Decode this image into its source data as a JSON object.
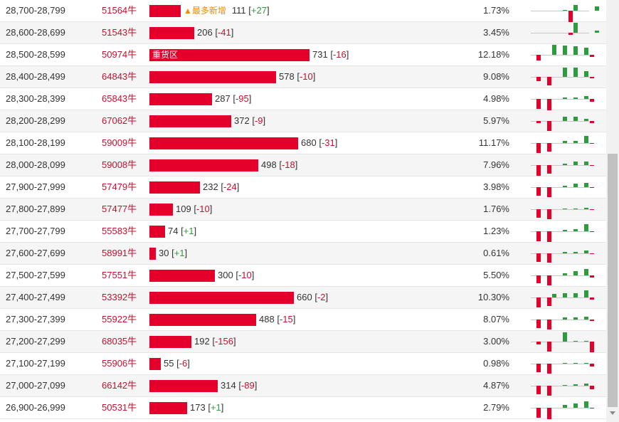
{
  "badge_label": "▲最多新增",
  "heavy_label": "重货区",
  "rows": [
    {
      "range": "28,700-28,799",
      "price": "51564牛",
      "bar": 44,
      "count": "111",
      "change": "+27",
      "pct": "1.73%",
      "badge": true,
      "spark": [
        0,
        0,
        0,
        0,
        1,
        0,
        8,
        16,
        0,
        0,
        6,
        0
      ]
    },
    {
      "range": "28,600-28,699",
      "price": "51543牛",
      "bar": 63,
      "count": "206",
      "change": "-41",
      "pct": "3.45%",
      "spark": [
        0,
        0,
        0,
        0,
        0,
        0,
        14,
        3,
        0,
        0,
        3,
        0
      ]
    },
    {
      "range": "28,500-28,599",
      "price": "50974牛",
      "bar": 225,
      "count": "731",
      "change": "-16",
      "pct": "12.18%",
      "heavy": true,
      "spark": [
        0,
        8,
        14,
        0,
        13,
        0,
        12,
        0,
        10,
        0,
        0,
        3
      ]
    },
    {
      "range": "28,400-28,499",
      "price": "64843牛",
      "bar": 178,
      "count": "578",
      "change": "-10",
      "pct": "9.08%",
      "spark": [
        0,
        6,
        0,
        12,
        13,
        0,
        13,
        0,
        8,
        0,
        0,
        2
      ]
    },
    {
      "range": "28,300-28,399",
      "price": "65843牛",
      "bar": 88,
      "count": "287",
      "change": "-95",
      "pct": "4.98%",
      "spark": [
        0,
        14,
        0,
        16,
        2,
        0,
        2,
        0,
        4,
        0,
        0,
        4
      ]
    },
    {
      "range": "28,200-28,299",
      "price": "67062牛",
      "bar": 115,
      "count": "372",
      "change": "-9",
      "pct": "5.97%",
      "spark": [
        0,
        3,
        0,
        14,
        6,
        0,
        6,
        0,
        3,
        0,
        0,
        3
      ]
    },
    {
      "range": "28,100-28,199",
      "price": "59009牛",
      "bar": 209,
      "count": "680",
      "change": "-31",
      "pct": "11.17%",
      "spark": [
        0,
        14,
        0,
        12,
        3,
        0,
        3,
        0,
        10,
        0,
        0,
        1
      ]
    },
    {
      "range": "28,000-28,099",
      "price": "59008牛",
      "bar": 153,
      "count": "498",
      "change": "-18",
      "pct": "7.96%",
      "spark": [
        0,
        15,
        0,
        12,
        2,
        0,
        5,
        0,
        5,
        0,
        0,
        1
      ]
    },
    {
      "range": "27,900-27,999",
      "price": "57479牛",
      "bar": 71,
      "count": "232",
      "change": "-24",
      "pct": "3.98%",
      "spark": [
        0,
        12,
        0,
        14,
        2,
        0,
        5,
        0,
        6,
        0,
        0,
        1
      ]
    },
    {
      "range": "27,800-27,899",
      "price": "57477牛",
      "bar": 33,
      "count": "109",
      "change": "-10",
      "pct": "1.76%",
      "spark": [
        0,
        12,
        0,
        14,
        1,
        0,
        1,
        0,
        2,
        0,
        0,
        1
      ]
    },
    {
      "range": "27,700-27,799",
      "price": "55583牛",
      "bar": 22,
      "count": "74",
      "change": "+1",
      "pct": "1.23%",
      "spark": [
        0,
        14,
        0,
        15,
        2,
        0,
        3,
        0,
        10,
        0,
        0,
        1
      ]
    },
    {
      "range": "27,600-27,699",
      "price": "58991牛",
      "bar": 9,
      "count": "30",
      "change": "+1",
      "pct": "0.61%",
      "spark": [
        0,
        12,
        0,
        13,
        2,
        0,
        2,
        0,
        4,
        0,
        0,
        1
      ]
    },
    {
      "range": "27,500-27,599",
      "price": "57551牛",
      "bar": 92,
      "count": "300",
      "change": "-10",
      "pct": "5.50%",
      "spark": [
        0,
        11,
        0,
        14,
        3,
        0,
        6,
        0,
        9,
        0,
        0,
        3
      ]
    },
    {
      "range": "27,400-27,499",
      "price": "53392牛",
      "bar": 203,
      "count": "660",
      "change": "-2",
      "pct": "10.30%",
      "spark": [
        0,
        14,
        5,
        12,
        6,
        0,
        6,
        0,
        10,
        0,
        0,
        3
      ]
    },
    {
      "range": "27,300-27,399",
      "price": "55922牛",
      "bar": 150,
      "count": "488",
      "change": "-15",
      "pct": "8.07%",
      "spark": [
        0,
        12,
        0,
        14,
        3,
        0,
        3,
        0,
        4,
        0,
        0,
        2
      ]
    },
    {
      "range": "27,200-27,299",
      "price": "68035牛",
      "bar": 59,
      "count": "192",
      "change": "-156",
      "pct": "3.00%",
      "spark": [
        0,
        4,
        0,
        14,
        13,
        0,
        1,
        0,
        1,
        0,
        0,
        15
      ]
    },
    {
      "range": "27,100-27,199",
      "price": "55906牛",
      "bar": 16,
      "count": "55",
      "change": "-6",
      "pct": "0.98%",
      "spark": [
        0,
        12,
        0,
        14,
        1,
        0,
        1,
        0,
        1,
        0,
        0,
        4
      ]
    },
    {
      "range": "27,000-27,099",
      "price": "66142牛",
      "bar": 96,
      "count": "314",
      "change": "-89",
      "pct": "4.87%",
      "spark": [
        0,
        12,
        0,
        14,
        1,
        0,
        2,
        0,
        3,
        0,
        0,
        5
      ]
    },
    {
      "range": "26,900-26,999",
      "price": "50531牛",
      "bar": 53,
      "count": "173",
      "change": "+1",
      "pct": "2.79%",
      "spark": [
        0,
        14,
        0,
        16,
        4,
        0,
        6,
        0,
        9,
        0,
        0,
        1
      ]
    }
  ]
}
